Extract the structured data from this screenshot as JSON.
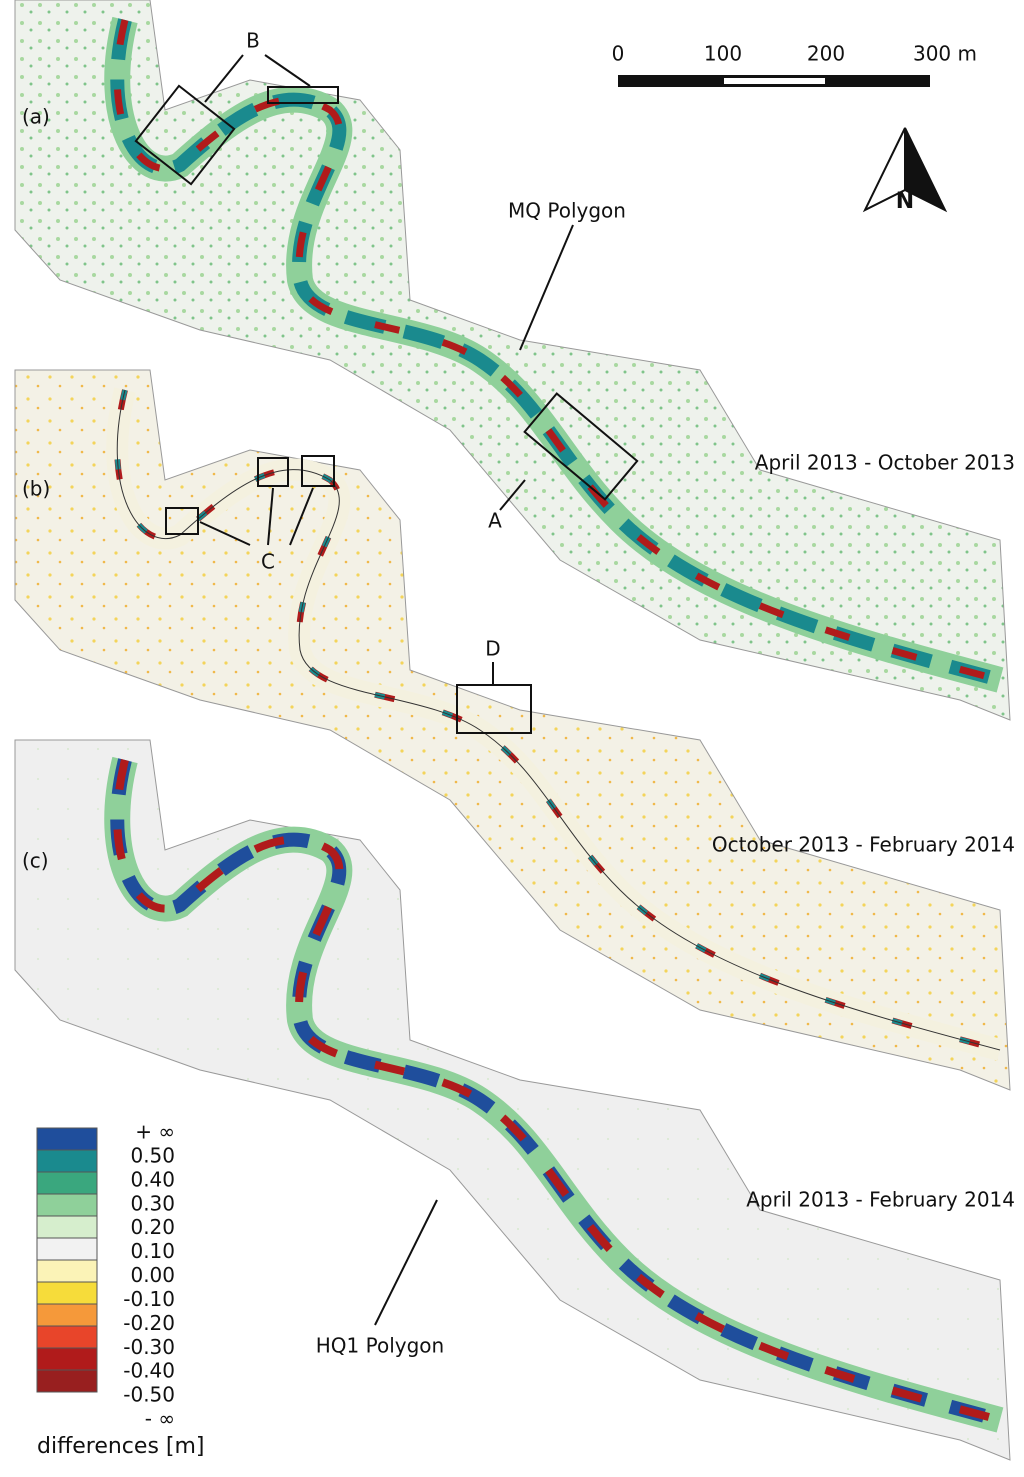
{
  "panels": [
    {
      "label": "(a)",
      "period": "April 2013 - October 2013"
    },
    {
      "label": "(b)",
      "period": "October 2013 - February 2014"
    },
    {
      "label": "(c)",
      "period": "April 2013 - February 2014"
    }
  ],
  "annotations": {
    "A": "A",
    "B": "B",
    "C": "C",
    "D": "D",
    "mq": "MQ Polygon",
    "hq1": "HQ1 Polygon"
  },
  "scale_bar": {
    "labels": [
      "0",
      "100",
      "200",
      "300 m"
    ]
  },
  "north_arrow": {
    "label": "N"
  },
  "legend": {
    "title": "differences [m]",
    "labels": [
      "+ ∞",
      "0.50",
      "0.40",
      "0.30",
      "0.20",
      "0.10",
      "0.00",
      "-0.10",
      "-0.20",
      "-0.30",
      "-0.40",
      "-0.50",
      "- ∞"
    ],
    "colors": [
      "#1f4e9c",
      "#1a8a8e",
      "#3aa77e",
      "#8fd09a",
      "#d6eecd",
      "#f2f2f2",
      "#fbf3b7",
      "#f6dc3a",
      "#f5993a",
      "#e8452a",
      "#b01b1b",
      "#981f1f"
    ]
  }
}
